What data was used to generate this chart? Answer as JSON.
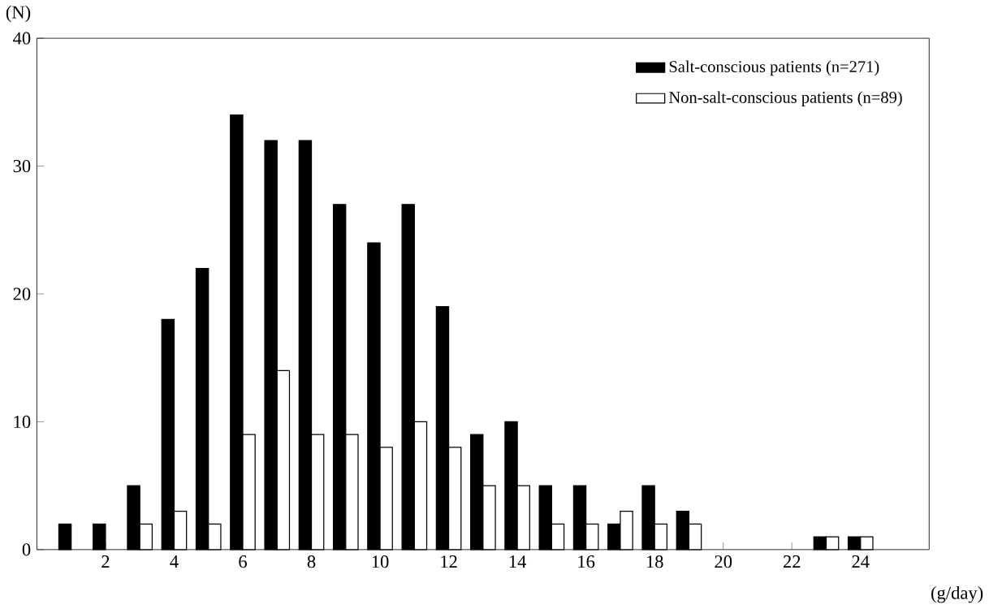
{
  "chart_data": {
    "type": "bar",
    "xlabel": "(g/day)",
    "ylabel": "(N)",
    "x": [
      1,
      2,
      3,
      4,
      5,
      6,
      7,
      8,
      9,
      10,
      11,
      12,
      13,
      14,
      15,
      16,
      17,
      18,
      19,
      23,
      24
    ],
    "series": [
      {
        "name": "Salt-conscious patients (n=271)",
        "color": "#000000",
        "values": [
          2,
          2,
          5,
          18,
          22,
          34,
          32,
          32,
          27,
          24,
          27,
          19,
          9,
          10,
          5,
          5,
          2,
          5,
          3,
          1,
          1
        ]
      },
      {
        "name": "Non-salt-conscious patients (n=89)",
        "color": "#ffffff",
        "values": [
          null,
          null,
          2,
          3,
          2,
          9,
          14,
          9,
          9,
          8,
          10,
          8,
          5,
          5,
          2,
          2,
          3,
          2,
          2,
          1,
          1
        ]
      }
    ],
    "xlim": [
      0,
      26
    ],
    "xticks": [
      2,
      4,
      6,
      8,
      10,
      12,
      14,
      16,
      18,
      20,
      22,
      24
    ],
    "ylim": [
      0,
      40
    ],
    "yticks": [
      0,
      10,
      20,
      30,
      40
    ],
    "legend": "top right",
    "grid": false
  }
}
